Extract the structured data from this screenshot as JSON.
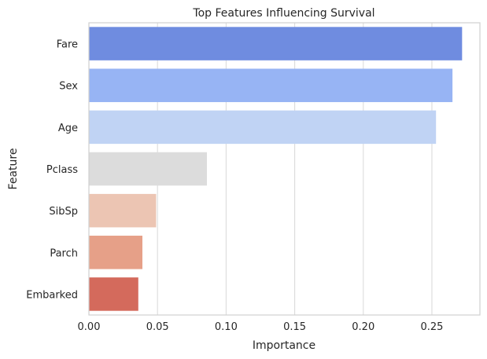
{
  "chart_data": {
    "type": "bar",
    "orientation": "horizontal",
    "title": "Top Features Influencing Survival",
    "xlabel": "Importance",
    "ylabel": "Feature",
    "categories": [
      "Fare",
      "Sex",
      "Age",
      "Pclass",
      "SibSp",
      "Parch",
      "Embarked"
    ],
    "values": [
      0.272,
      0.265,
      0.253,
      0.086,
      0.049,
      0.039,
      0.036
    ],
    "colors": [
      "#6f8ce0",
      "#97b4f4",
      "#c0d3f4",
      "#dcdcdc",
      "#ecc5b3",
      "#e6a088",
      "#d46a5c"
    ],
    "xlim": [
      0,
      0.285
    ],
    "xticks": [
      0,
      0.05,
      0.1,
      0.15,
      0.2,
      0.25
    ],
    "xtick_labels": [
      "0.00",
      "0.05",
      "0.10",
      "0.15",
      "0.20",
      "0.25"
    ],
    "grid": true,
    "palette": "coolwarm"
  }
}
